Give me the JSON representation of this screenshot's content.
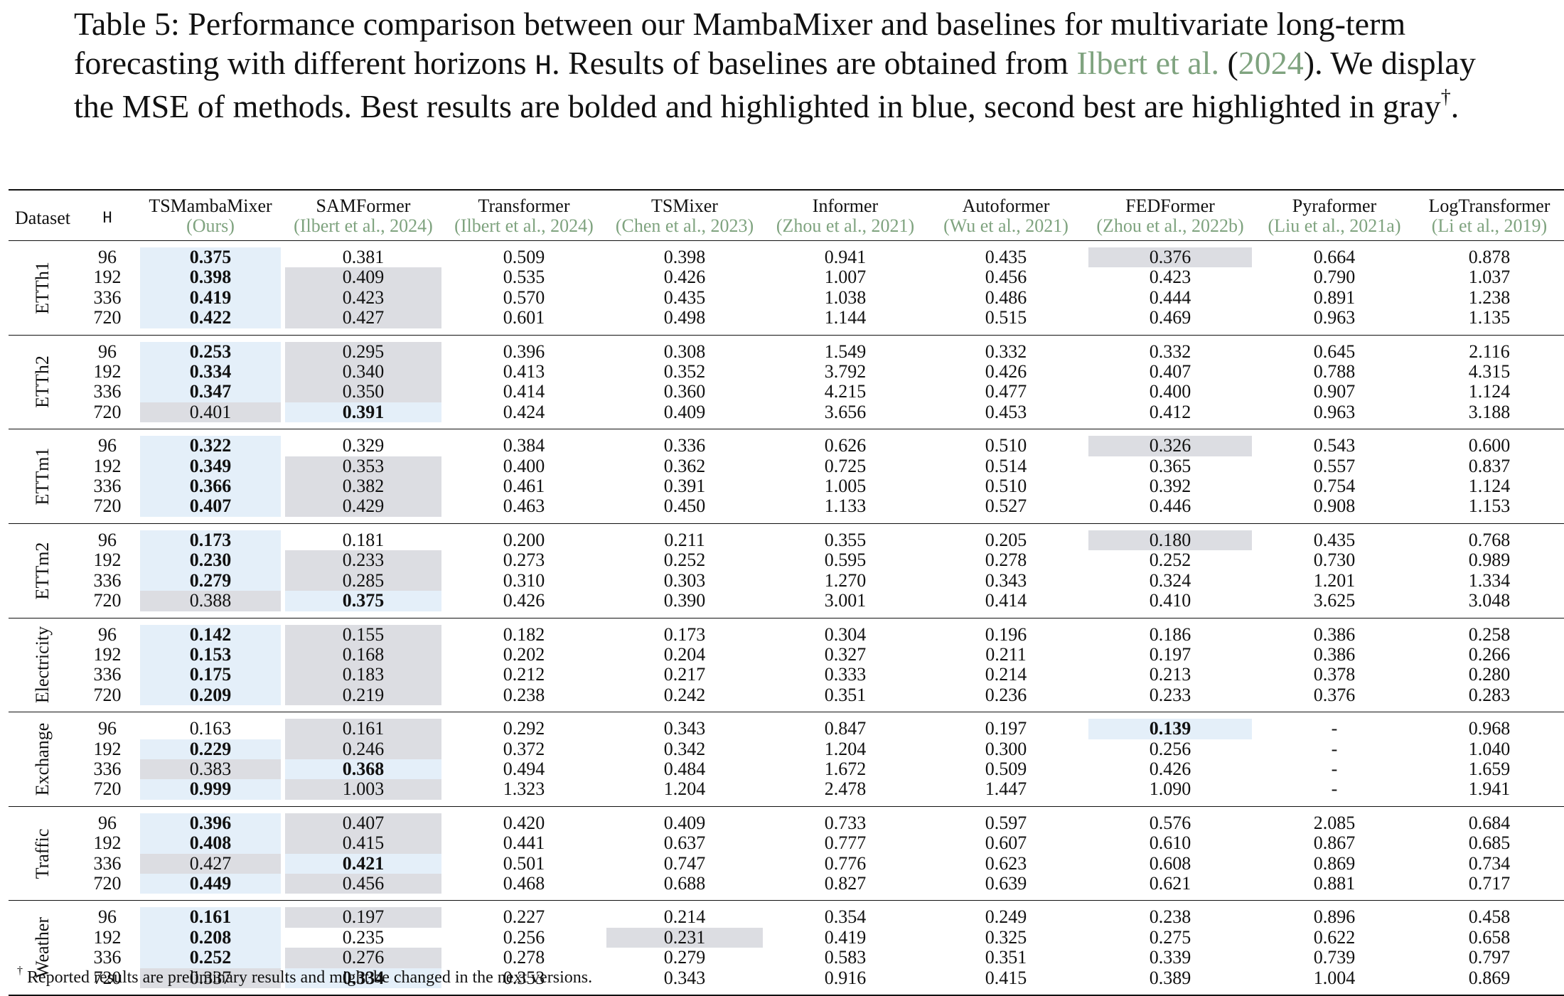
{
  "caption": {
    "part1": "Table 5: Performance comparison between our MambaMixer and baselines for multivariate long-term forecasting with different horizons ",
    "horizon_symbol": "H",
    "part2": ". Results of baselines are obtained from ",
    "cite_author": "Ilbert et al.",
    "cite_year": "2024",
    "part3": "). We display the MSE of methods. Best results are bolded and highlighted in blue, second best are highlighted in gray",
    "dagger": "†",
    "end": "."
  },
  "header": {
    "dataset": "Dataset",
    "h": "H",
    "columns": [
      {
        "name": "TSMambaMixer",
        "cite": "(Ours)"
      },
      {
        "name": "SAMFormer",
        "cite": "(Ilbert et al., 2024)"
      },
      {
        "name": "Transformer",
        "cite": "(Ilbert et al., 2024)"
      },
      {
        "name": "TSMixer",
        "cite": "(Chen et al., 2023)"
      },
      {
        "name": "Informer",
        "cite": "(Zhou et al., 2021)"
      },
      {
        "name": "Autoformer",
        "cite": "(Wu et al., 2021)"
      },
      {
        "name": "FEDFormer",
        "cite": "(Zhou et al., 2022b)"
      },
      {
        "name": "Pyraformer",
        "cite": "(Liu et al., 2021a)"
      },
      {
        "name": "LogTransformer",
        "cite": "(Li et al., 2019)"
      }
    ]
  },
  "groups": [
    {
      "dataset": "ETTh1",
      "rows": [
        {
          "h": "96",
          "v": [
            "0.375",
            "0.381",
            "0.509",
            "0.398",
            "0.941",
            "0.435",
            "0.376",
            "0.664",
            "0.878"
          ],
          "m": [
            "b",
            "",
            "",
            "",
            "",
            "",
            "g",
            "",
            ""
          ]
        },
        {
          "h": "192",
          "v": [
            "0.398",
            "0.409",
            "0.535",
            "0.426",
            "1.007",
            "0.456",
            "0.423",
            "0.790",
            "1.037"
          ],
          "m": [
            "b",
            "g",
            "",
            "",
            "",
            "",
            "",
            "",
            ""
          ]
        },
        {
          "h": "336",
          "v": [
            "0.419",
            "0.423",
            "0.570",
            "0.435",
            "1.038",
            "0.486",
            "0.444",
            "0.891",
            "1.238"
          ],
          "m": [
            "b",
            "g",
            "",
            "",
            "",
            "",
            "",
            "",
            ""
          ]
        },
        {
          "h": "720",
          "v": [
            "0.422",
            "0.427",
            "0.601",
            "0.498",
            "1.144",
            "0.515",
            "0.469",
            "0.963",
            "1.135"
          ],
          "m": [
            "b",
            "g",
            "",
            "",
            "",
            "",
            "",
            "",
            ""
          ]
        }
      ]
    },
    {
      "dataset": "ETTh2",
      "rows": [
        {
          "h": "96",
          "v": [
            "0.253",
            "0.295",
            "0.396",
            "0.308",
            "1.549",
            "0.332",
            "0.332",
            "0.645",
            "2.116"
          ],
          "m": [
            "b",
            "g",
            "",
            "",
            "",
            "",
            "",
            "",
            ""
          ]
        },
        {
          "h": "192",
          "v": [
            "0.334",
            "0.340",
            "0.413",
            "0.352",
            "3.792",
            "0.426",
            "0.407",
            "0.788",
            "4.315"
          ],
          "m": [
            "b",
            "g",
            "",
            "",
            "",
            "",
            "",
            "",
            ""
          ]
        },
        {
          "h": "336",
          "v": [
            "0.347",
            "0.350",
            "0.414",
            "0.360",
            "4.215",
            "0.477",
            "0.400",
            "0.907",
            "1.124"
          ],
          "m": [
            "b",
            "g",
            "",
            "",
            "",
            "",
            "",
            "",
            ""
          ]
        },
        {
          "h": "720",
          "v": [
            "0.401",
            "0.391",
            "0.424",
            "0.409",
            "3.656",
            "0.453",
            "0.412",
            "0.963",
            "3.188"
          ],
          "m": [
            "g",
            "b",
            "",
            "",
            "",
            "",
            "",
            "",
            ""
          ]
        }
      ]
    },
    {
      "dataset": "ETTm1",
      "rows": [
        {
          "h": "96",
          "v": [
            "0.322",
            "0.329",
            "0.384",
            "0.336",
            "0.626",
            "0.510",
            "0.326",
            "0.543",
            "0.600"
          ],
          "m": [
            "b",
            "",
            "",
            "",
            "",
            "",
            "g",
            "",
            ""
          ]
        },
        {
          "h": "192",
          "v": [
            "0.349",
            "0.353",
            "0.400",
            "0.362",
            "0.725",
            "0.514",
            "0.365",
            "0.557",
            "0.837"
          ],
          "m": [
            "b",
            "g",
            "",
            "",
            "",
            "",
            "",
            "",
            ""
          ]
        },
        {
          "h": "336",
          "v": [
            "0.366",
            "0.382",
            "0.461",
            "0.391",
            "1.005",
            "0.510",
            "0.392",
            "0.754",
            "1.124"
          ],
          "m": [
            "b",
            "g",
            "",
            "",
            "",
            "",
            "",
            "",
            ""
          ]
        },
        {
          "h": "720",
          "v": [
            "0.407",
            "0.429",
            "0.463",
            "0.450",
            "1.133",
            "0.527",
            "0.446",
            "0.908",
            "1.153"
          ],
          "m": [
            "b",
            "g",
            "",
            "",
            "",
            "",
            "",
            "",
            ""
          ]
        }
      ]
    },
    {
      "dataset": "ETTm2",
      "rows": [
        {
          "h": "96",
          "v": [
            "0.173",
            "0.181",
            "0.200",
            "0.211",
            "0.355",
            "0.205",
            "0.180",
            "0.435",
            "0.768"
          ],
          "m": [
            "b",
            "",
            "",
            "",
            "",
            "",
            "g",
            "",
            ""
          ]
        },
        {
          "h": "192",
          "v": [
            "0.230",
            "0.233",
            "0.273",
            "0.252",
            "0.595",
            "0.278",
            "0.252",
            "0.730",
            "0.989"
          ],
          "m": [
            "b",
            "g",
            "",
            "",
            "",
            "",
            "",
            "",
            ""
          ]
        },
        {
          "h": "336",
          "v": [
            "0.279",
            "0.285",
            "0.310",
            "0.303",
            "1.270",
            "0.343",
            "0.324",
            "1.201",
            "1.334"
          ],
          "m": [
            "b",
            "g",
            "",
            "",
            "",
            "",
            "",
            "",
            ""
          ]
        },
        {
          "h": "720",
          "v": [
            "0.388",
            "0.375",
            "0.426",
            "0.390",
            "3.001",
            "0.414",
            "0.410",
            "3.625",
            "3.048"
          ],
          "m": [
            "g",
            "b",
            "",
            "",
            "",
            "",
            "",
            "",
            ""
          ]
        }
      ]
    },
    {
      "dataset": "Electricity",
      "rows": [
        {
          "h": "96",
          "v": [
            "0.142",
            "0.155",
            "0.182",
            "0.173",
            "0.304",
            "0.196",
            "0.186",
            "0.386",
            "0.258"
          ],
          "m": [
            "b",
            "g",
            "",
            "",
            "",
            "",
            "",
            "",
            ""
          ]
        },
        {
          "h": "192",
          "v": [
            "0.153",
            "0.168",
            "0.202",
            "0.204",
            "0.327",
            "0.211",
            "0.197",
            "0.386",
            "0.266"
          ],
          "m": [
            "b",
            "g",
            "",
            "",
            "",
            "",
            "",
            "",
            ""
          ]
        },
        {
          "h": "336",
          "v": [
            "0.175",
            "0.183",
            "0.212",
            "0.217",
            "0.333",
            "0.214",
            "0.213",
            "0.378",
            "0.280"
          ],
          "m": [
            "b",
            "g",
            "",
            "",
            "",
            "",
            "",
            "",
            ""
          ]
        },
        {
          "h": "720",
          "v": [
            "0.209",
            "0.219",
            "0.238",
            "0.242",
            "0.351",
            "0.236",
            "0.233",
            "0.376",
            "0.283"
          ],
          "m": [
            "b",
            "g",
            "",
            "",
            "",
            "",
            "",
            "",
            ""
          ]
        }
      ]
    },
    {
      "dataset": "Exchange",
      "rows": [
        {
          "h": "96",
          "v": [
            "0.163",
            "0.161",
            "0.292",
            "0.343",
            "0.847",
            "0.197",
            "0.139",
            "-",
            "0.968"
          ],
          "m": [
            "",
            "g",
            "",
            "",
            "",
            "",
            "b",
            "",
            ""
          ]
        },
        {
          "h": "192",
          "v": [
            "0.229",
            "0.246",
            "0.372",
            "0.342",
            "1.204",
            "0.300",
            "0.256",
            "-",
            "1.040"
          ],
          "m": [
            "b",
            "g",
            "",
            "",
            "",
            "",
            "",
            "",
            ""
          ]
        },
        {
          "h": "336",
          "v": [
            "0.383",
            "0.368",
            "0.494",
            "0.484",
            "1.672",
            "0.509",
            "0.426",
            "-",
            "1.659"
          ],
          "m": [
            "g",
            "b",
            "",
            "",
            "",
            "",
            "",
            "",
            ""
          ]
        },
        {
          "h": "720",
          "v": [
            "0.999",
            "1.003",
            "1.323",
            "1.204",
            "2.478",
            "1.447",
            "1.090",
            "-",
            "1.941"
          ],
          "m": [
            "b",
            "g",
            "",
            "",
            "",
            "",
            "",
            "",
            ""
          ]
        }
      ]
    },
    {
      "dataset": "Traffic",
      "rows": [
        {
          "h": "96",
          "v": [
            "0.396",
            "0.407",
            "0.420",
            "0.409",
            "0.733",
            "0.597",
            "0.576",
            "2.085",
            "0.684"
          ],
          "m": [
            "b",
            "g",
            "",
            "",
            "",
            "",
            "",
            "",
            ""
          ]
        },
        {
          "h": "192",
          "v": [
            "0.408",
            "0.415",
            "0.441",
            "0.637",
            "0.777",
            "0.607",
            "0.610",
            "0.867",
            "0.685"
          ],
          "m": [
            "b",
            "g",
            "",
            "",
            "",
            "",
            "",
            "",
            ""
          ]
        },
        {
          "h": "336",
          "v": [
            "0.427",
            "0.421",
            "0.501",
            "0.747",
            "0.776",
            "0.623",
            "0.608",
            "0.869",
            "0.734"
          ],
          "m": [
            "g",
            "b",
            "",
            "",
            "",
            "",
            "",
            "",
            ""
          ]
        },
        {
          "h": "720",
          "v": [
            "0.449",
            "0.456",
            "0.468",
            "0.688",
            "0.827",
            "0.639",
            "0.621",
            "0.881",
            "0.717"
          ],
          "m": [
            "b",
            "g",
            "",
            "",
            "",
            "",
            "",
            "",
            ""
          ]
        }
      ]
    },
    {
      "dataset": "Weather",
      "rows": [
        {
          "h": "96",
          "v": [
            "0.161",
            "0.197",
            "0.227",
            "0.214",
            "0.354",
            "0.249",
            "0.238",
            "0.896",
            "0.458"
          ],
          "m": [
            "b",
            "g",
            "",
            "",
            "",
            "",
            "",
            "",
            ""
          ]
        },
        {
          "h": "192",
          "v": [
            "0.208",
            "0.235",
            "0.256",
            "0.231",
            "0.419",
            "0.325",
            "0.275",
            "0.622",
            "0.658"
          ],
          "m": [
            "b",
            "",
            "",
            "g",
            "",
            "",
            "",
            "",
            ""
          ]
        },
        {
          "h": "336",
          "v": [
            "0.252",
            "0.276",
            "0.278",
            "0.279",
            "0.583",
            "0.351",
            "0.339",
            "0.739",
            "0.797"
          ],
          "m": [
            "b",
            "g",
            "",
            "",
            "",
            "",
            "",
            "",
            ""
          ]
        },
        {
          "h": "720",
          "v": [
            "0.337",
            "0.334",
            "0.353",
            "0.343",
            "0.916",
            "0.415",
            "0.389",
            "1.004",
            "0.869"
          ],
          "m": [
            "g",
            "b",
            "",
            "",
            "",
            "",
            "",
            "",
            ""
          ]
        }
      ]
    }
  ],
  "footnote": {
    "dagger": "†",
    "text": " Reported results are preliminary results and might be changed in the next versions."
  }
}
